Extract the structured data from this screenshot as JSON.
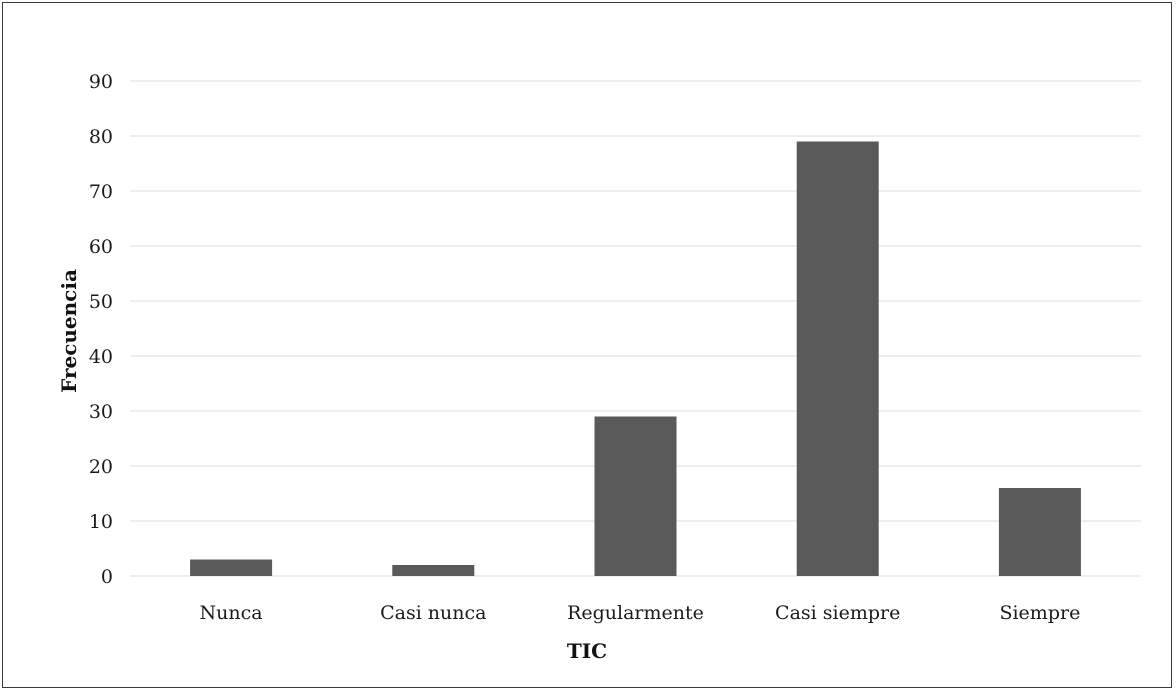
{
  "chart_data": {
    "type": "bar",
    "title": "",
    "xlabel": "TIC",
    "ylabel": "Frecuencia",
    "categories": [
      "Nunca",
      "Casi nunca",
      "Regularmente",
      "Casi siempre",
      "Siempre"
    ],
    "values": [
      3,
      2,
      29,
      79,
      16
    ],
    "ylim": [
      0,
      90
    ],
    "yticks": [
      "0",
      "10",
      "20",
      "30",
      "40",
      "50",
      "60",
      "70",
      "80",
      "90"
    ],
    "grid": true,
    "legend": "none",
    "bar_color": "#595959"
  }
}
